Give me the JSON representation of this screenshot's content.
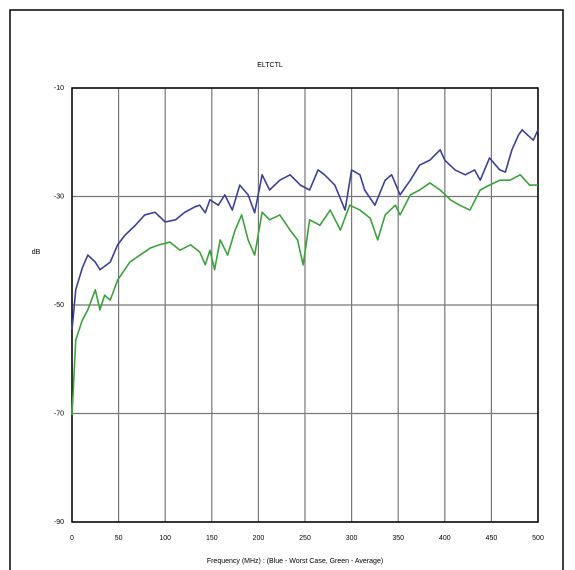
{
  "chart_data": {
    "type": "line",
    "title": "ELTCTL",
    "x_label": "Frequency (MHz) : (Blue - Worst Case, Green - Average)",
    "y_label": "dB",
    "xlim": [
      0,
      500
    ],
    "xticks": [
      0,
      50,
      100,
      150,
      200,
      250,
      300,
      350,
      400,
      450,
      500
    ],
    "ylim": [
      -90,
      -10
    ],
    "yticks": [
      -90,
      -70,
      -50,
      -30,
      -10
    ],
    "grid": true,
    "series": [
      {
        "name": "Worst Case",
        "color": "#3a3f9a",
        "x": [
          0,
          4,
          11,
          17,
          25,
          30,
          41,
          49,
          57,
          68,
          78,
          89,
          100,
          111,
          121,
          132,
          137,
          143,
          148,
          157,
          164,
          172,
          180,
          189,
          196,
          204,
          212,
          223,
          234,
          245,
          255,
          264,
          271,
          282,
          293,
          300,
          309,
          314,
          325,
          336,
          343,
          352,
          363,
          373,
          384,
          395,
          400,
          411,
          422,
          432,
          438,
          448,
          459,
          465,
          472,
          479,
          483,
          489,
          495,
          500
        ],
        "values": [
          -54.6,
          -47.2,
          -43.2,
          -40.8,
          -42.1,
          -43.5,
          -42.1,
          -38.9,
          -37.1,
          -35.3,
          -33.4,
          -32.9,
          -34.7,
          -34.3,
          -32.9,
          -31.9,
          -31.6,
          -33.0,
          -30.6,
          -31.6,
          -29.7,
          -32.5,
          -27.9,
          -29.7,
          -33.0,
          -26.0,
          -28.8,
          -27.0,
          -26.0,
          -27.9,
          -28.8,
          -25.1,
          -26.0,
          -27.9,
          -32.5,
          -25.1,
          -26.0,
          -28.8,
          -31.6,
          -27.0,
          -26.0,
          -29.7,
          -27.0,
          -24.2,
          -23.3,
          -21.4,
          -23.3,
          -25.1,
          -26.0,
          -25.1,
          -27.0,
          -22.9,
          -25.1,
          -25.5,
          -21.4,
          -18.7,
          -17.7,
          -18.7,
          -19.6,
          -17.7
        ]
      },
      {
        "name": "Average",
        "color": "#3aa23a",
        "x": [
          0,
          4,
          11,
          17,
          25,
          30,
          35,
          41,
          49,
          62,
          73,
          84,
          94,
          105,
          116,
          127,
          137,
          143,
          148,
          153,
          159,
          167,
          175,
          182,
          189,
          196,
          204,
          212,
          223,
          234,
          242,
          248,
          255,
          266,
          277,
          288,
          298,
          309,
          320,
          328,
          336,
          347,
          352,
          363,
          373,
          384,
          395,
          406,
          416,
          427,
          438,
          448,
          459,
          470,
          481,
          491,
          500
        ],
        "values": [
          -70.3,
          -56.5,
          -52.8,
          -50.9,
          -47.2,
          -50.9,
          -48.2,
          -49.1,
          -45.4,
          -42.1,
          -40.8,
          -39.5,
          -38.9,
          -38.4,
          -39.9,
          -38.9,
          -40.2,
          -42.6,
          -39.9,
          -43.5,
          -38.0,
          -40.8,
          -36.2,
          -33.4,
          -38.0,
          -40.8,
          -32.9,
          -34.3,
          -33.4,
          -36.2,
          -38.0,
          -42.6,
          -34.3,
          -35.3,
          -32.5,
          -36.2,
          -31.6,
          -32.5,
          -34.0,
          -38.0,
          -33.4,
          -31.6,
          -33.4,
          -29.7,
          -28.8,
          -27.5,
          -28.8,
          -30.6,
          -31.6,
          -32.5,
          -28.8,
          -27.9,
          -27.0,
          -27.0,
          -26.0,
          -27.9,
          -27.9
        ]
      }
    ]
  }
}
